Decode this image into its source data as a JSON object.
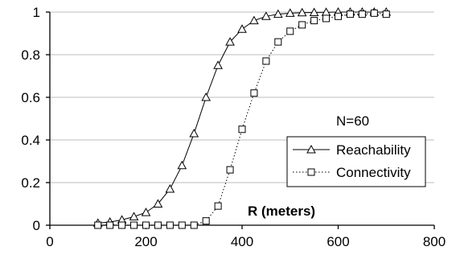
{
  "chart_data": {
    "type": "line",
    "title": "",
    "xlabel": "R (meters)",
    "ylabel": "",
    "xlim": [
      0,
      800
    ],
    "ylim": [
      0,
      1
    ],
    "xticks": [
      0,
      200,
      400,
      600,
      800
    ],
    "yticks": [
      0,
      0.2,
      0.4,
      0.6,
      0.8,
      1
    ],
    "xtick_labels": [
      "0",
      "200",
      "400",
      "600",
      "800"
    ],
    "ytick_labels": [
      "0",
      "0.2",
      "0.4",
      "0.6",
      "0.8",
      "1"
    ],
    "grid": "horizontal",
    "annotation": "N=60",
    "legend_position": "lower-right",
    "series": [
      {
        "name": "Reachability",
        "marker": "triangle",
        "line_style": "solid",
        "color": "#000000",
        "x": [
          100,
          125,
          150,
          175,
          200,
          225,
          250,
          275,
          300,
          325,
          350,
          375,
          400,
          425,
          450,
          475,
          500,
          525,
          550,
          575,
          600,
          625,
          650,
          675,
          700
        ],
        "y": [
          0.01,
          0.015,
          0.025,
          0.04,
          0.06,
          0.1,
          0.17,
          0.28,
          0.43,
          0.6,
          0.75,
          0.86,
          0.92,
          0.96,
          0.98,
          0.99,
          0.995,
          0.997,
          0.998,
          0.999,
          1,
          1,
          1,
          1,
          1
        ]
      },
      {
        "name": "Connectivity",
        "marker": "square",
        "line_style": "dotted",
        "color": "#000000",
        "x": [
          100,
          125,
          150,
          175,
          200,
          225,
          250,
          275,
          300,
          325,
          350,
          375,
          400,
          425,
          450,
          475,
          500,
          525,
          550,
          575,
          600,
          625,
          650,
          675,
          700
        ],
        "y": [
          0,
          0,
          0,
          0,
          0,
          0,
          0,
          0,
          0,
          0.02,
          0.09,
          0.26,
          0.45,
          0.62,
          0.77,
          0.86,
          0.91,
          0.94,
          0.96,
          0.97,
          0.98,
          0.99,
          0.99,
          0.995,
          0.99
        ]
      }
    ]
  }
}
